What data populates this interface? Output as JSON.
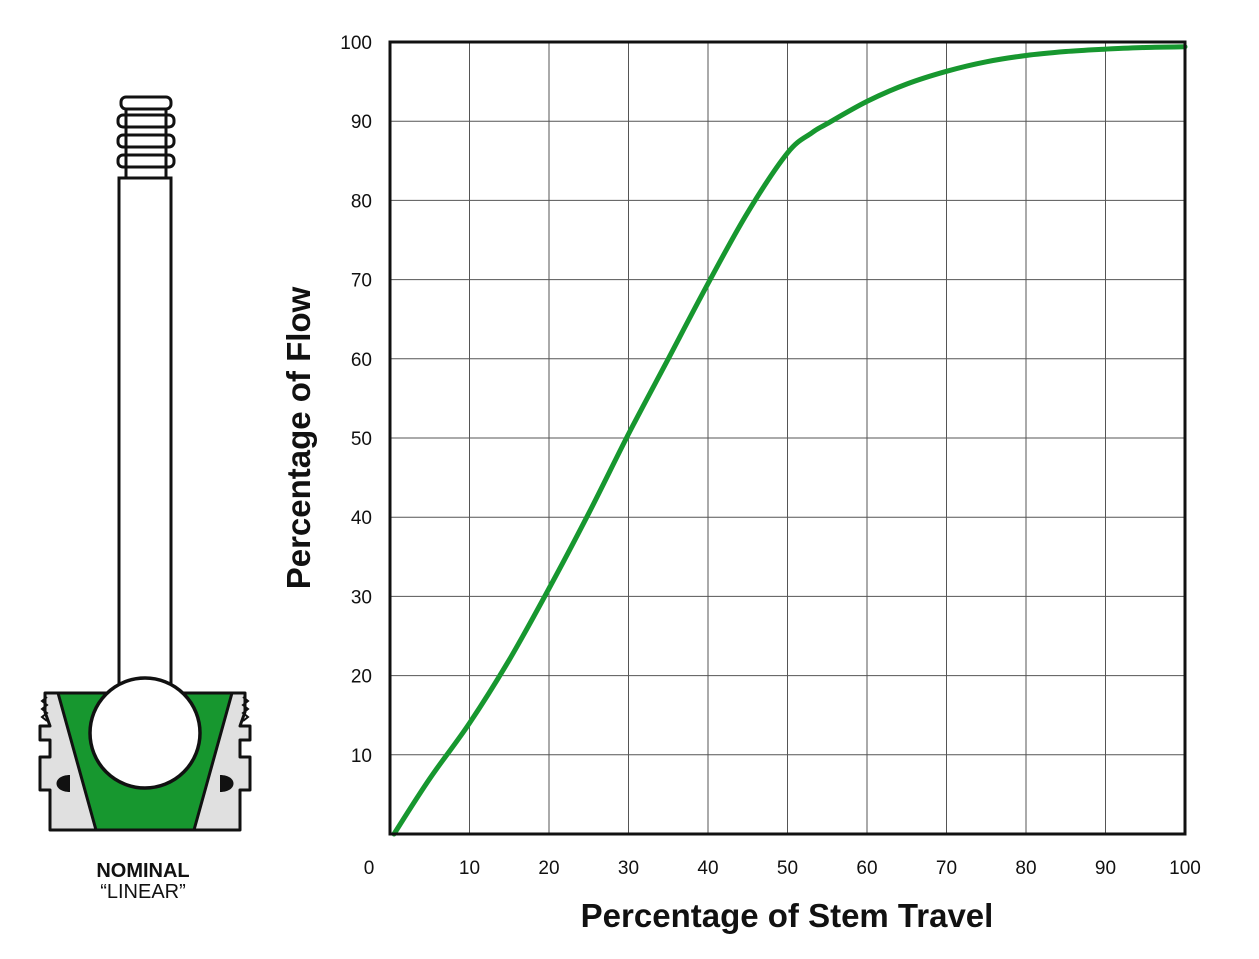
{
  "diagram": {
    "caption_line1": "NOMINAL",
    "caption_line2": "“LINEAR”",
    "accent_color": "#17972f",
    "body_color": "#e0e0e0"
  },
  "chart_data": {
    "type": "line",
    "xlabel": "Percentage of Stem Travel",
    "ylabel": "Percentage of Flow",
    "xlim": [
      0,
      100
    ],
    "ylim": [
      0,
      100
    ],
    "x_ticks": [
      "0",
      "10",
      "20",
      "30",
      "40",
      "50",
      "60",
      "70",
      "80",
      "90",
      "100"
    ],
    "y_ticks": [
      "10",
      "20",
      "30",
      "40",
      "50",
      "60",
      "70",
      "80",
      "90",
      "100"
    ],
    "grid": true,
    "series": [
      {
        "color": "#17972f",
        "x": [
          0.5,
          5,
          10,
          15,
          20,
          25,
          30,
          35,
          40,
          45,
          50,
          53,
          55,
          60,
          65,
          70,
          75,
          80,
          85,
          90,
          95,
          100
        ],
        "y": [
          0,
          7,
          14,
          22,
          31,
          40.5,
          50.5,
          60,
          69.5,
          78.5,
          86,
          88.5,
          89.7,
          92.5,
          94.7,
          96.3,
          97.5,
          98.3,
          98.8,
          99.1,
          99.3,
          99.4
        ]
      }
    ]
  }
}
